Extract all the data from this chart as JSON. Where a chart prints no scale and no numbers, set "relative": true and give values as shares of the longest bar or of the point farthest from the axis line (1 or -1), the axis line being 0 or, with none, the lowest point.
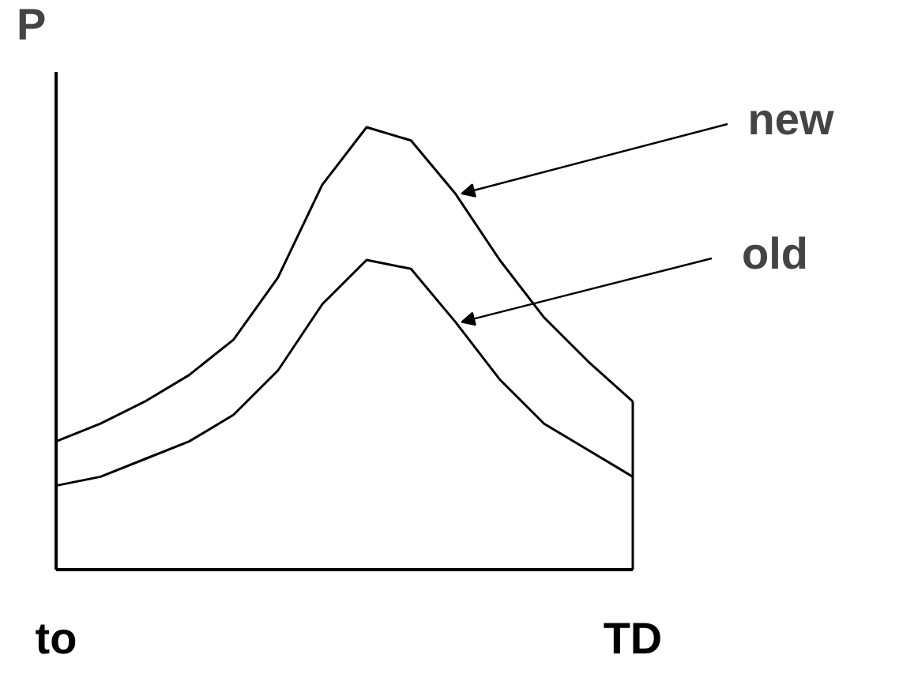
{
  "chart_data": {
    "type": "line",
    "ylabel": "P",
    "relative": true,
    "categories": [
      "to",
      null,
      null,
      null,
      null,
      null,
      null,
      null,
      null,
      null,
      null,
      null,
      null,
      "TD"
    ],
    "marker": "none",
    "line_style": "solid",
    "ref_lines": [
      {
        "axis": "x",
        "value": "TD"
      }
    ],
    "series": [
      {
        "name": "new",
        "color": "#000000",
        "values": [
          0.29,
          0.33,
          0.38,
          0.44,
          0.52,
          0.66,
          0.87,
          1.0,
          0.97,
          0.85,
          0.7,
          0.57,
          0.47,
          0.38
        ]
      },
      {
        "name": "old",
        "color": "#000000",
        "values": [
          0.19,
          0.21,
          0.25,
          0.29,
          0.35,
          0.45,
          0.6,
          0.7,
          0.68,
          0.56,
          0.43,
          0.33,
          0.27,
          0.21
        ]
      }
    ]
  }
}
